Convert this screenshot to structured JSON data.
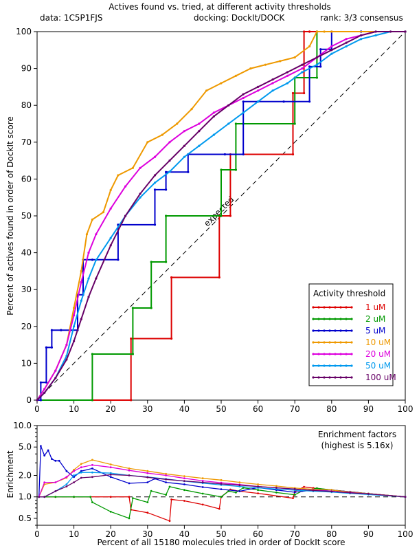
{
  "header": {
    "title": "Actives found vs. tried, at different activity thresholds",
    "data_label": "data: 1C5P1FJS",
    "docking_label": "docking: DockIt/DOCK",
    "rank_label": "rank: 3/3 consensus"
  },
  "chart_data": [
    {
      "type": "line",
      "title": "Actives found vs. tried, at different activity thresholds",
      "xlabel": "",
      "ylabel": "Percent of actives found in order of DockIt score",
      "xlim": [
        0,
        100
      ],
      "ylim": [
        0,
        100
      ],
      "xticks": [
        "0",
        "10",
        "20",
        "30",
        "40",
        "50",
        "60",
        "70",
        "80",
        "90",
        "100"
      ],
      "yticks": [
        "0",
        "10",
        "20",
        "30",
        "40",
        "50",
        "60",
        "70",
        "80",
        "90",
        "100"
      ],
      "grid": false,
      "legend_title": "Activity threshold",
      "legend_position": "bottom-right",
      "reference_line": {
        "label": "expected",
        "points": [
          [
            0,
            0
          ],
          [
            100,
            100
          ]
        ],
        "style": "dashed"
      },
      "series": [
        {
          "name": "1 uM",
          "color": "#dd0000",
          "step": true,
          "x": [
            0,
            25.5,
            25.5,
            36.5,
            36.5,
            49.5,
            49.5,
            52.5,
            52.5,
            69.5,
            69.5,
            72.5,
            72.5,
            74,
            74,
            76,
            76,
            100
          ],
          "y": [
            0,
            0,
            16.7,
            16.7,
            33.3,
            33.3,
            50,
            50,
            66.7,
            66.7,
            83.3,
            83.3,
            100,
            100,
            100,
            100,
            100,
            100
          ]
        },
        {
          "name": "2 uM",
          "color": "#009900",
          "step": true,
          "x": [
            0,
            15,
            15,
            26,
            26,
            31,
            31,
            35,
            35,
            50,
            50,
            54,
            54,
            56,
            56,
            70,
            70,
            76,
            76,
            100
          ],
          "y": [
            0,
            0,
            12.5,
            12.5,
            25,
            25,
            37.5,
            37.5,
            50,
            50,
            62.5,
            62.5,
            75,
            75,
            75,
            75,
            87.5,
            87.5,
            100,
            100
          ]
        },
        {
          "name": "5 uM",
          "color": "#0000cc",
          "step": true,
          "x": [
            0,
            1,
            1,
            2.5,
            2.5,
            4,
            4,
            6.5,
            6.5,
            11,
            11,
            12.5,
            12.5,
            15,
            15,
            22,
            22,
            32,
            32,
            35,
            35,
            41,
            41,
            51,
            51,
            56,
            56,
            60,
            60,
            67,
            67,
            74,
            74,
            77,
            77,
            80,
            80,
            88,
            88,
            100
          ],
          "y": [
            0,
            0,
            4.8,
            4.8,
            14.3,
            14.3,
            19,
            19,
            19,
            19,
            28.6,
            28.6,
            38.1,
            38.1,
            38.1,
            38.1,
            47.6,
            47.6,
            57.1,
            57.1,
            61.9,
            61.9,
            66.7,
            66.7,
            66.7,
            66.7,
            81,
            81,
            81,
            81,
            81,
            81,
            90.5,
            90.5,
            95.2,
            95.2,
            100,
            100,
            100,
            100
          ]
        },
        {
          "name": "10 uM",
          "color": "#ee9900",
          "step": false,
          "x": [
            0,
            2,
            5,
            8,
            10,
            12,
            13.5,
            15,
            18,
            20,
            22,
            26,
            30,
            34,
            38,
            42,
            46,
            50,
            54,
            58,
            62,
            66,
            70,
            74,
            76,
            78,
            80,
            100
          ],
          "y": [
            0,
            3,
            8,
            15,
            25,
            35,
            45,
            49,
            51,
            57,
            61,
            63,
            70,
            72,
            75,
            79,
            84,
            86,
            88,
            90,
            91,
            92,
            93,
            96,
            100,
            100,
            100,
            100
          ]
        },
        {
          "name": "20 uM",
          "color": "#dd00dd",
          "step": false,
          "x": [
            0,
            2,
            5,
            8,
            10,
            12,
            14,
            16,
            20,
            24,
            28,
            32,
            36,
            40,
            44,
            48,
            52,
            56,
            60,
            64,
            68,
            72,
            76,
            80,
            84,
            88,
            92,
            100
          ],
          "y": [
            0,
            3,
            8,
            15,
            23,
            32,
            40,
            45,
            52,
            58,
            63,
            66,
            70,
            73,
            75,
            78,
            80,
            82,
            84,
            86,
            88,
            90,
            93,
            96,
            98,
            99,
            100,
            100
          ]
        },
        {
          "name": "50 uM",
          "color": "#0099ee",
          "step": false,
          "x": [
            0,
            2,
            5,
            8,
            10,
            12,
            14,
            16,
            20,
            24,
            28,
            32,
            36,
            40,
            44,
            48,
            52,
            56,
            60,
            64,
            68,
            72,
            76,
            80,
            84,
            88,
            92,
            96,
            100
          ],
          "y": [
            0,
            2,
            6,
            12,
            20,
            27,
            33,
            38,
            44,
            50,
            55,
            59,
            62,
            66,
            69,
            72,
            75,
            78,
            81,
            84,
            86,
            89,
            91,
            94,
            96,
            98,
            99,
            100,
            100
          ]
        },
        {
          "name": "100 uM",
          "color": "#660066",
          "step": false,
          "x": [
            0,
            2,
            5,
            8,
            10,
            12,
            14,
            16,
            20,
            24,
            28,
            32,
            36,
            40,
            44,
            48,
            52,
            56,
            60,
            64,
            68,
            72,
            76,
            80,
            84,
            88,
            92,
            96,
            100
          ],
          "y": [
            0,
            2,
            6,
            11,
            16,
            22,
            28,
            33,
            42,
            50,
            56,
            61,
            65,
            69,
            73,
            77,
            80,
            83,
            85,
            87,
            89,
            91,
            93,
            95,
            97,
            99,
            100,
            100,
            100
          ]
        }
      ]
    },
    {
      "type": "line",
      "title": "Enrichment factors",
      "subtitle": "(highest is 5.16x)",
      "xlabel": "Percent of all 15180 molecules tried in order of DockIt score",
      "ylabel": "Enrichment",
      "yscale": "log",
      "xlim": [
        0,
        100
      ],
      "ylim": [
        0.4,
        10
      ],
      "xticks": [
        "0",
        "10",
        "20",
        "30",
        "40",
        "50",
        "60",
        "70",
        "80",
        "90",
        "100"
      ],
      "yticks": [
        "0.5",
        "1.0",
        "2.0",
        "5.0",
        "10.0"
      ],
      "reference_line": {
        "y": 1.0,
        "style": "dashed"
      },
      "series": [
        {
          "name": "1 uM",
          "color": "#dd0000",
          "x": [
            0.5,
            5,
            10,
            20,
            25,
            25.5,
            30,
            36,
            36.5,
            40,
            45,
            49.5,
            50,
            52.5,
            55,
            60,
            69.5,
            70,
            72.5,
            75,
            80,
            85,
            90,
            100
          ],
          "y": [
            1,
            1,
            1,
            1,
            1,
            0.66,
            0.6,
            0.46,
            0.92,
            0.88,
            0.78,
            0.68,
            1.0,
            1.27,
            1.2,
            1.12,
            0.96,
            1.19,
            1.38,
            1.33,
            1.25,
            1.18,
            1.11,
            1.0
          ]
        },
        {
          "name": "2 uM",
          "color": "#009900",
          "x": [
            0.5,
            5,
            10,
            14.5,
            15,
            20,
            25,
            26,
            30,
            31,
            35,
            36,
            40,
            45,
            50,
            52,
            54,
            56,
            60,
            65,
            70,
            72,
            76,
            80,
            90,
            100
          ],
          "y": [
            1,
            1,
            1,
            1,
            0.84,
            0.62,
            0.5,
            0.96,
            0.84,
            1.21,
            1.07,
            1.39,
            1.25,
            1.11,
            1.0,
            1.2,
            1.15,
            1.34,
            1.25,
            1.15,
            1.07,
            1.21,
            1.32,
            1.25,
            1.11,
            1.0
          ]
        },
        {
          "name": "5 uM",
          "color": "#0000cc",
          "x": [
            0.5,
            1,
            2,
            3,
            4,
            5,
            6,
            8,
            10,
            12,
            15,
            20,
            25,
            30,
            32,
            35,
            40,
            45,
            50,
            55,
            60,
            65,
            70,
            75,
            80,
            85,
            90,
            100
          ],
          "y": [
            1,
            5.16,
            3.8,
            4.5,
            3.4,
            3.2,
            3.2,
            2.3,
            1.9,
            2.3,
            2.5,
            1.9,
            1.55,
            1.6,
            1.8,
            1.6,
            1.5,
            1.37,
            1.28,
            1.2,
            1.35,
            1.25,
            1.16,
            1.25,
            1.25,
            1.18,
            1.11,
            1.0
          ]
        },
        {
          "name": "10 uM",
          "color": "#ee9900",
          "x": [
            0.5,
            2,
            5,
            8,
            10,
            12,
            15,
            20,
            25,
            30,
            35,
            40,
            45,
            50,
            55,
            60,
            65,
            70,
            75,
            80,
            85,
            90,
            100
          ],
          "y": [
            1,
            1.5,
            1.6,
            1.85,
            2.4,
            2.9,
            3.3,
            2.85,
            2.5,
            2.3,
            2.1,
            1.95,
            1.82,
            1.72,
            1.6,
            1.5,
            1.42,
            1.33,
            1.28,
            1.25,
            1.17,
            1.11,
            1.0
          ]
        },
        {
          "name": "20 uM",
          "color": "#dd00dd",
          "x": [
            0.5,
            2,
            5,
            8,
            10,
            12,
            15,
            20,
            25,
            30,
            35,
            40,
            45,
            50,
            55,
            60,
            65,
            70,
            75,
            80,
            85,
            90,
            100
          ],
          "y": [
            1,
            1.6,
            1.6,
            1.9,
            2.3,
            2.6,
            2.8,
            2.6,
            2.35,
            2.15,
            2.0,
            1.82,
            1.68,
            1.58,
            1.49,
            1.4,
            1.34,
            1.28,
            1.24,
            1.2,
            1.15,
            1.1,
            1.0
          ]
        },
        {
          "name": "50 uM",
          "color": "#0099ee",
          "x": [
            0.5,
            2,
            5,
            8,
            10,
            12,
            15,
            20,
            25,
            30,
            35,
            40,
            45,
            50,
            55,
            60,
            65,
            70,
            75,
            80,
            85,
            90,
            100
          ],
          "y": [
            1,
            1.0,
            1.2,
            1.5,
            2.0,
            2.2,
            2.2,
            2.15,
            2.0,
            1.9,
            1.78,
            1.66,
            1.56,
            1.47,
            1.4,
            1.34,
            1.29,
            1.24,
            1.2,
            1.17,
            1.12,
            1.08,
            1.0
          ]
        },
        {
          "name": "100 uM",
          "color": "#660066",
          "x": [
            0.5,
            2,
            5,
            8,
            10,
            12,
            15,
            20,
            25,
            30,
            35,
            40,
            45,
            50,
            55,
            60,
            65,
            70,
            75,
            80,
            85,
            90,
            100
          ],
          "y": [
            1,
            1.0,
            1.2,
            1.4,
            1.6,
            1.85,
            1.9,
            2.05,
            2.0,
            1.88,
            1.76,
            1.67,
            1.6,
            1.52,
            1.46,
            1.4,
            1.34,
            1.29,
            1.23,
            1.19,
            1.14,
            1.1,
            1.0
          ]
        }
      ]
    }
  ]
}
